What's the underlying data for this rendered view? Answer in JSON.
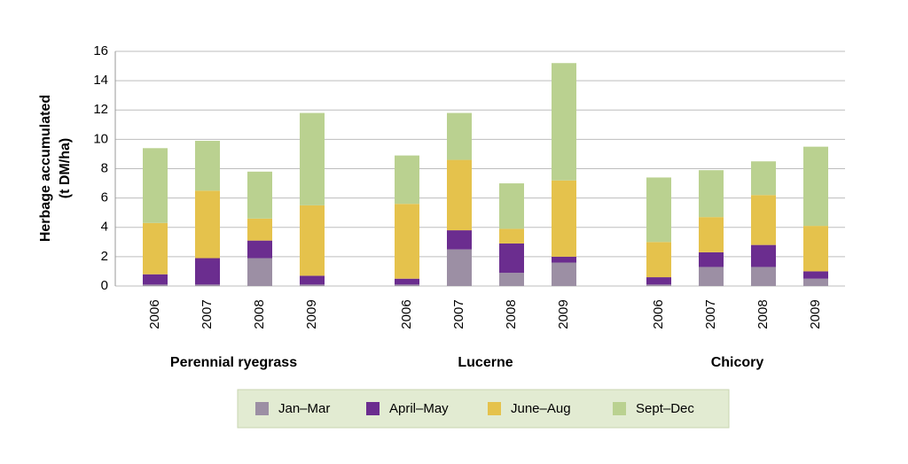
{
  "chart_data": {
    "type": "stacked_bar",
    "ylabel": [
      "Herbage accumulated",
      "(t DM/ha)"
    ],
    "groups": [
      {
        "name": "Perennial ryegrass",
        "categories": [
          "2006",
          "2007",
          "2008",
          "2009"
        ]
      },
      {
        "name": "Lucerne",
        "categories": [
          "2006",
          "2007",
          "2008",
          "2009"
        ]
      },
      {
        "name": "Chicory",
        "categories": [
          "2006",
          "2007",
          "2008",
          "2009"
        ]
      }
    ],
    "series": [
      {
        "name": "Jan–Mar",
        "color": "#9c8fa4",
        "values": [
          0.1,
          0.1,
          1.9,
          0.1,
          0.1,
          2.5,
          0.9,
          1.6,
          0.1,
          1.3,
          1.3,
          0.5
        ]
      },
      {
        "name": "April–May",
        "color": "#6b2d8f",
        "values": [
          0.7,
          1.8,
          1.2,
          0.6,
          0.4,
          1.3,
          2.0,
          0.4,
          0.5,
          1.0,
          1.5,
          0.5
        ]
      },
      {
        "name": "June–Aug",
        "color": "#e5c24c",
        "values": [
          3.5,
          4.6,
          1.5,
          4.8,
          5.1,
          4.8,
          1.0,
          5.2,
          2.4,
          2.4,
          3.4,
          3.1
        ]
      },
      {
        "name": "Sept–Dec",
        "color": "#bad190",
        "values": [
          5.1,
          3.4,
          3.2,
          6.3,
          3.3,
          3.2,
          3.1,
          8.0,
          4.4,
          3.2,
          2.3,
          5.4
        ]
      }
    ],
    "ylim": [
      0,
      16
    ],
    "yticks": [
      0,
      2,
      4,
      6,
      8,
      10,
      12,
      14,
      16
    ],
    "grid": true,
    "legend": "bottom"
  }
}
